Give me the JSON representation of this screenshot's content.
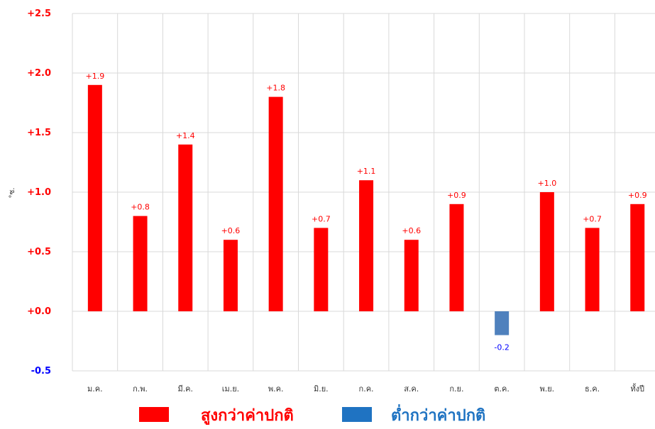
{
  "chart_data": {
    "type": "bar",
    "ylabel": "°ซ.",
    "ylim": [
      -0.5,
      2.5
    ],
    "yticks": [
      2.5,
      2.0,
      1.5,
      1.0,
      0.5,
      0.0,
      -0.5
    ],
    "ytick_labels": [
      "+2.5",
      "+2.0",
      "+1.5",
      "+1.0",
      "+0.5",
      "+0.0",
      "-0.5"
    ],
    "grid": true,
    "categories": [
      "ม.ค.",
      "ก.พ.",
      "มี.ค.",
      "เม.ย.",
      "พ.ค.",
      "มิ.ย.",
      "ก.ค.",
      "ส.ค.",
      "ก.ย.",
      "ต.ค.",
      "พ.ย.",
      "ธ.ค.",
      "ทั้งปี"
    ],
    "values": [
      1.9,
      0.8,
      1.4,
      0.6,
      1.8,
      0.7,
      1.1,
      0.6,
      0.9,
      -0.2,
      1.0,
      0.7,
      0.9
    ],
    "data_labels": [
      "+1.9",
      "+0.8",
      "+1.4",
      "+0.6",
      "+1.8",
      "+0.7",
      "+1.1",
      "+0.6",
      "+0.9",
      "-0.2",
      "+1.0",
      "+0.7",
      "+0.9"
    ],
    "legend": {
      "placement": "bottom",
      "items": [
        {
          "label": "สูงกว่าค่าปกติ",
          "color": "#ff0000"
        },
        {
          "label": "ต่ำกว่าค่าปกติ",
          "color": "#1f73c2"
        }
      ]
    },
    "colors": {
      "above": "#ff0000",
      "below": "#4f81bd",
      "positive_text": "#ff0000",
      "negative_text": "#0000ff",
      "legend_below": "#1f73c2",
      "grid": "#d9d9d9"
    }
  }
}
